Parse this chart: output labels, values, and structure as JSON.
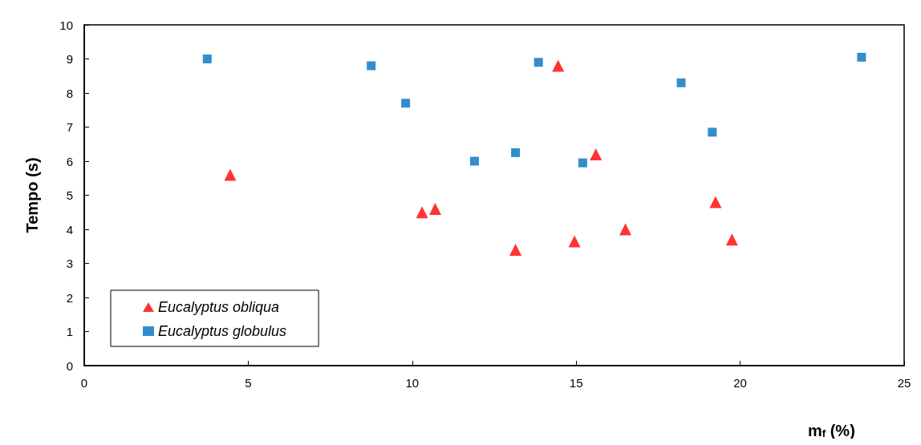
{
  "chart_data": {
    "type": "scatter",
    "xlabel": "m$_{f}$ (%)",
    "ylabel": "Tempo (s)",
    "xlim": [
      0,
      25
    ],
    "xticks": [
      0,
      5,
      10,
      15,
      20,
      25
    ],
    "ylim": [
      0,
      10
    ],
    "yticks": [
      0,
      1,
      2,
      3,
      4,
      5,
      6,
      7,
      8,
      9,
      10
    ],
    "grid": false,
    "legend": "bottom left",
    "series": [
      {
        "name": "Eucalyptus obliqua",
        "color": "#ff0000",
        "marker": "triangle",
        "x": [
          4.45,
          10.3,
          10.7,
          13.15,
          14.45,
          14.95,
          15.6,
          16.5,
          19.25,
          19.75
        ],
        "values": [
          5.6,
          4.5,
          4.6,
          3.4,
          8.8,
          3.65,
          6.2,
          4.0,
          4.8,
          3.7
        ]
      },
      {
        "name": "Eucalyptus globulus",
        "color": "#0070c0",
        "marker": "square",
        "x": [
          3.75,
          8.75,
          9.8,
          11.9,
          13.15,
          13.85,
          15.2,
          18.2,
          19.15,
          23.7
        ],
        "values": [
          9.0,
          8.8,
          7.7,
          6.0,
          6.25,
          8.9,
          5.95,
          8.3,
          6.85,
          9.05
        ]
      }
    ]
  }
}
